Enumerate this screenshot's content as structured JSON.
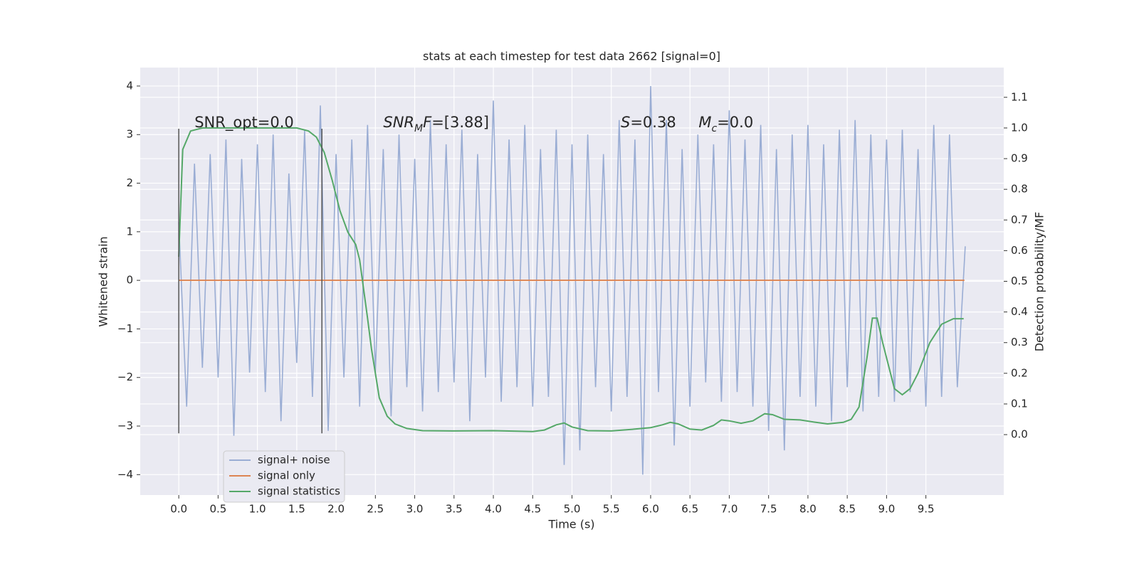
{
  "chart_data": {
    "type": "line",
    "title": "stats at each timestep for test data 2662 [signal=0]",
    "xlabel": "Time (s)",
    "ylabel": "Whitened strain",
    "y2label": "Detection probability/MF",
    "xlim": [
      -0.49,
      10.49
    ],
    "ylim": [
      -4.42,
      4.38
    ],
    "y2lim": [
      -0.197,
      1.197
    ],
    "xticks": [
      {
        "value": 0,
        "label": "0.0"
      },
      {
        "value": 0.5,
        "label": "0.5"
      },
      {
        "value": 1,
        "label": "1.0"
      },
      {
        "value": 1.5,
        "label": "1.5"
      },
      {
        "value": 2,
        "label": "2.0"
      },
      {
        "value": 2.5,
        "label": "2.5"
      },
      {
        "value": 3,
        "label": "3.0"
      },
      {
        "value": 3.5,
        "label": "3.5"
      },
      {
        "value": 4,
        "label": "4.0"
      },
      {
        "value": 4.5,
        "label": "4.5"
      },
      {
        "value": 5,
        "label": "5.0"
      },
      {
        "value": 5.5,
        "label": "5.5"
      },
      {
        "value": 6,
        "label": "6.0"
      },
      {
        "value": 6.5,
        "label": "6.5"
      },
      {
        "value": 7,
        "label": "7.0"
      },
      {
        "value": 7.5,
        "label": "7.5"
      },
      {
        "value": 8,
        "label": "8.0"
      },
      {
        "value": 8.5,
        "label": "8.5"
      },
      {
        "value": 9,
        "label": "9.0"
      },
      {
        "value": 9.5,
        "label": "9.5"
      }
    ],
    "yticks": [
      {
        "value": -4,
        "label": "−4"
      },
      {
        "value": -3,
        "label": "−3"
      },
      {
        "value": -2,
        "label": "−2"
      },
      {
        "value": -1,
        "label": "−1"
      },
      0,
      1,
      2,
      3,
      4
    ],
    "y2ticks": [
      {
        "value": 0,
        "label": "0.0"
      },
      0.1,
      0.2,
      0.3,
      0.4,
      0.5,
      0.6,
      0.7,
      0.8,
      0.9,
      {
        "value": 1,
        "label": "1.0"
      },
      1.1
    ],
    "grid": true,
    "legend": "lower left",
    "series": [
      {
        "name": "signal+ noise",
        "color": "#9aadd4",
        "x": [
          0,
          0.1,
          0.2,
          0.3,
          0.4,
          0.5,
          0.6,
          0.7,
          0.8,
          0.9,
          1,
          1.1,
          1.2,
          1.3,
          1.4,
          1.5,
          1.6,
          1.7,
          1.8,
          1.9,
          2,
          2.1,
          2.2,
          2.3,
          2.4,
          2.5,
          2.6,
          2.7,
          2.8,
          2.9,
          3,
          3.1,
          3.2,
          3.3,
          3.4,
          3.5,
          3.6,
          3.7,
          3.8,
          3.9,
          4,
          4.1,
          4.2,
          4.3,
          4.4,
          4.5,
          4.6,
          4.7,
          4.8,
          4.9,
          5,
          5.1,
          5.2,
          5.3,
          5.4,
          5.5,
          5.6,
          5.7,
          5.8,
          5.9,
          6,
          6.1,
          6.2,
          6.3,
          6.4,
          6.5,
          6.6,
          6.7,
          6.8,
          6.9,
          7,
          7.1,
          7.2,
          7.3,
          7.4,
          7.5,
          7.6,
          7.7,
          7.8,
          7.9,
          8,
          8.1,
          8.2,
          8.3,
          8.4,
          8.5,
          8.6,
          8.7,
          8.8,
          8.9,
          9,
          9.1,
          9.2,
          9.3,
          9.4,
          9.5,
          9.6,
          9.7,
          9.8,
          9.9,
          10
        ],
        "values": [
          1.2,
          -2.6,
          2.4,
          -1.8,
          2.6,
          -2.0,
          2.9,
          -3.2,
          2.5,
          -1.9,
          2.8,
          -2.3,
          3.0,
          -2.9,
          2.2,
          -1.7,
          3.1,
          -2.4,
          3.6,
          -3.1,
          2.6,
          -2.0,
          2.9,
          -2.6,
          3.2,
          -1.9,
          2.7,
          -2.8,
          3.0,
          -2.2,
          2.5,
          -2.7,
          3.3,
          -2.3,
          2.8,
          -2.1,
          3.1,
          -2.9,
          2.6,
          -2.0,
          3.7,
          -2.5,
          2.9,
          -2.2,
          3.2,
          -2.6,
          2.7,
          -2.4,
          3.1,
          -3.8,
          2.8,
          -3.5,
          3.0,
          -2.2,
          2.6,
          -2.7,
          3.3,
          -2.4,
          2.9,
          -4.0,
          4.0,
          -2.3,
          3.3,
          -3.4,
          2.7,
          -2.6,
          3.0,
          -2.1,
          2.8,
          -2.5,
          3.5,
          -2.3,
          2.9,
          -2.6,
          3.2,
          -3.1,
          2.7,
          -3.5,
          3.0,
          -2.4,
          3.2,
          -2.6,
          2.8,
          -2.9,
          3.1,
          -2.2,
          3.3,
          -2.7,
          3.0,
          -2.4,
          2.9,
          -2.5,
          3.1,
          -2.3,
          2.7,
          -2.6,
          3.2,
          -2.4,
          3.0,
          -2.2,
          0.7
        ]
      },
      {
        "name": "signal only",
        "color": "#dd8452",
        "x": [
          0,
          9.99
        ],
        "values": [
          0,
          0
        ]
      },
      {
        "name": "signal statistics",
        "color": "#55a868",
        "axis": "y2",
        "x": [
          0,
          0.05,
          0.15,
          0.3,
          1.0,
          1.5,
          1.65,
          1.75,
          1.85,
          1.95,
          2.05,
          2.15,
          2.25,
          2.3,
          2.4,
          2.45,
          2.5,
          2.55,
          2.65,
          2.75,
          2.9,
          3.1,
          3.5,
          4.0,
          4.5,
          4.65,
          4.8,
          4.9,
          5.0,
          5.2,
          5.5,
          5.8,
          6.0,
          6.15,
          6.25,
          6.35,
          6.5,
          6.65,
          6.8,
          6.9,
          7.0,
          7.15,
          7.3,
          7.45,
          7.55,
          7.7,
          7.9,
          8.1,
          8.25,
          8.45,
          8.55,
          8.65,
          8.75,
          8.82,
          8.88,
          8.95,
          9.05,
          9.1,
          9.2,
          9.3,
          9.4,
          9.55,
          9.7,
          9.85,
          9.98
        ],
        "values": [
          0.58,
          0.93,
          0.99,
          1.0,
          1.0,
          1.0,
          0.99,
          0.97,
          0.92,
          0.83,
          0.73,
          0.66,
          0.62,
          0.57,
          0.38,
          0.28,
          0.2,
          0.12,
          0.06,
          0.035,
          0.02,
          0.013,
          0.012,
          0.013,
          0.01,
          0.015,
          0.032,
          0.038,
          0.025,
          0.013,
          0.012,
          0.018,
          0.023,
          0.032,
          0.04,
          0.035,
          0.018,
          0.015,
          0.03,
          0.048,
          0.045,
          0.037,
          0.045,
          0.068,
          0.065,
          0.05,
          0.048,
          0.04,
          0.035,
          0.04,
          0.05,
          0.09,
          0.25,
          0.38,
          0.38,
          0.3,
          0.2,
          0.15,
          0.13,
          0.15,
          0.2,
          0.3,
          0.36,
          0.378,
          0.378
        ]
      }
    ],
    "vlines": [
      0,
      1.82
    ],
    "vline_range": [
      -3.15,
      3.12
    ],
    "vline_color": "#555555",
    "annotations": [
      {
        "x": 0.2,
        "y": 3.24,
        "parts": [
          {
            "t": "SNR_opt=0.0"
          }
        ]
      },
      {
        "x": 2.6,
        "y": 3.24,
        "parts": [
          {
            "t": "SNR",
            "s": "italic"
          },
          {
            "t": "M",
            "s": "sub"
          },
          {
            "t": "F",
            "s": "italic"
          },
          {
            "t": "=[3.88]"
          }
        ]
      },
      {
        "x": 5.62,
        "y": 3.24,
        "parts": [
          {
            "t": "S",
            "s": "italic"
          },
          {
            "t": "=0.38"
          }
        ]
      },
      {
        "x": 6.61,
        "y": 3.24,
        "parts": [
          {
            "t": "M",
            "s": "italic"
          },
          {
            "t": "c",
            "s": "sub"
          },
          {
            "t": "=0.0"
          }
        ]
      }
    ]
  }
}
